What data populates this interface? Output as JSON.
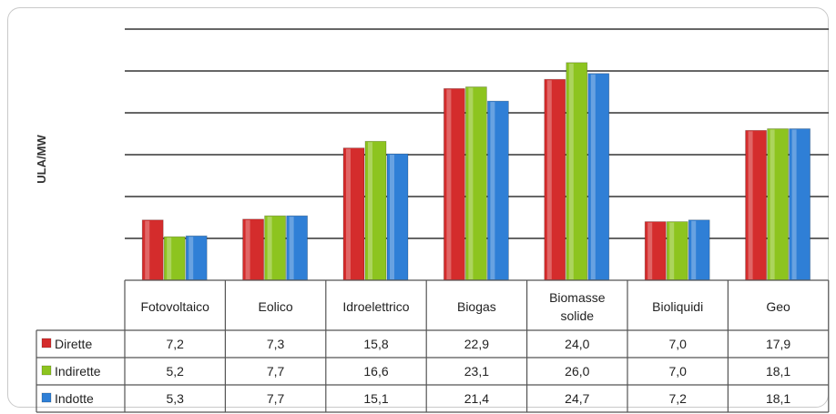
{
  "chart_data": {
    "type": "bar",
    "title": "",
    "ylabel": "ULA/MW",
    "ylim": [
      0,
      30
    ],
    "grid": true,
    "categories": [
      "Fotovoltaico",
      "Eolico",
      "Idroelettrico",
      "Biogas",
      "Biomasse solide",
      "Bioliquidi",
      "Geo"
    ],
    "series": [
      {
        "name": "Dirette",
        "color": "#d42c2c",
        "values": [
          7.2,
          7.3,
          15.8,
          22.9,
          24.0,
          7.0,
          17.9
        ],
        "labels": [
          "7,2",
          "7,3",
          "15,8",
          "22,9",
          "24,0",
          "7,0",
          "17,9"
        ]
      },
      {
        "name": "Indirette",
        "color": "#8dc41f",
        "values": [
          5.2,
          7.7,
          16.6,
          23.1,
          26.0,
          7.0,
          18.1
        ],
        "labels": [
          "5,2",
          "7,7",
          "16,6",
          "23,1",
          "26,0",
          "7,0",
          "18,1"
        ]
      },
      {
        "name": "Indotte",
        "color": "#2f7fd6",
        "values": [
          5.3,
          7.7,
          15.1,
          21.4,
          24.7,
          7.2,
          18.1
        ],
        "labels": [
          "5,3",
          "7,7",
          "15,1",
          "21,4",
          "24,7",
          "7,2",
          "18,1"
        ]
      }
    ]
  }
}
